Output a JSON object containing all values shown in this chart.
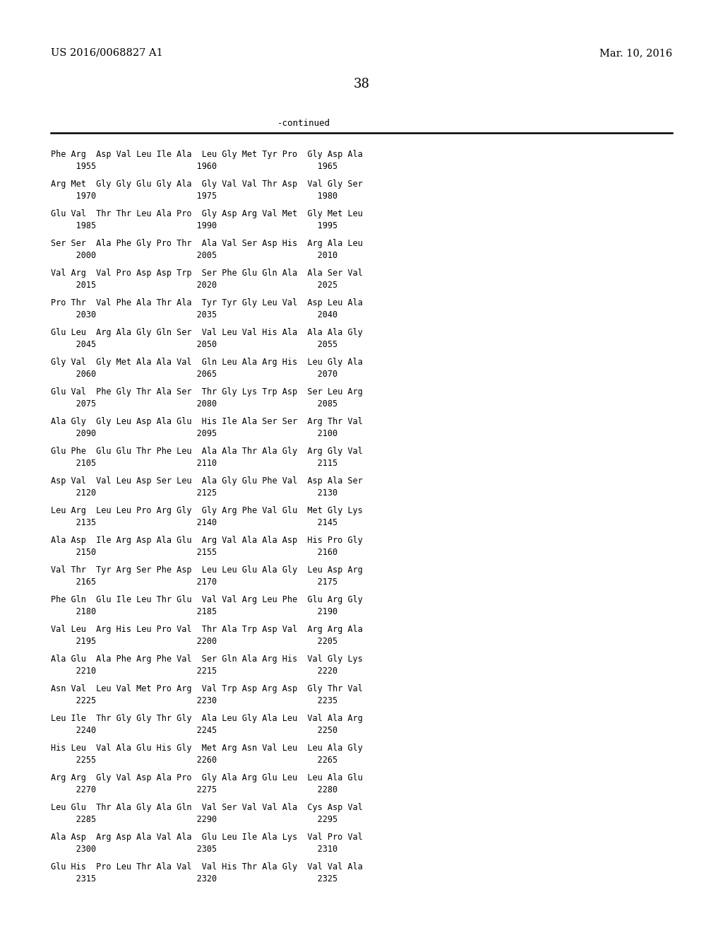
{
  "header_left": "US 2016/0068827 A1",
  "header_right": "Mar. 10, 2016",
  "page_number": "38",
  "continued_label": "-continued",
  "background_color": "#ffffff",
  "text_color": "#000000",
  "sequence_blocks": [
    {
      "seq": "Phe Arg  Asp Val Leu Ile Ala  Leu Gly Met Tyr Pro  Gly Asp Ala",
      "num": "     1955                    1960                    1965"
    },
    {
      "seq": "Arg Met  Gly Gly Glu Gly Ala  Gly Val Val Thr Asp  Val Gly Ser",
      "num": "     1970                    1975                    1980"
    },
    {
      "seq": "Glu Val  Thr Thr Leu Ala Pro  Gly Asp Arg Val Met  Gly Met Leu",
      "num": "     1985                    1990                    1995"
    },
    {
      "seq": "Ser Ser  Ala Phe Gly Pro Thr  Ala Val Ser Asp His  Arg Ala Leu",
      "num": "     2000                    2005                    2010"
    },
    {
      "seq": "Val Arg  Val Pro Asp Asp Trp  Ser Phe Glu Gln Ala  Ala Ser Val",
      "num": "     2015                    2020                    2025"
    },
    {
      "seq": "Pro Thr  Val Phe Ala Thr Ala  Tyr Tyr Gly Leu Val  Asp Leu Ala",
      "num": "     2030                    2035                    2040"
    },
    {
      "seq": "Glu Leu  Arg Ala Gly Gln Ser  Val Leu Val His Ala  Ala Ala Gly",
      "num": "     2045                    2050                    2055"
    },
    {
      "seq": "Gly Val  Gly Met Ala Ala Val  Gln Leu Ala Arg His  Leu Gly Ala",
      "num": "     2060                    2065                    2070"
    },
    {
      "seq": "Glu Val  Phe Gly Thr Ala Ser  Thr Gly Lys Trp Asp  Ser Leu Arg",
      "num": "     2075                    2080                    2085"
    },
    {
      "seq": "Ala Gly  Gly Leu Asp Ala Glu  His Ile Ala Ser Ser  Arg Thr Val",
      "num": "     2090                    2095                    2100"
    },
    {
      "seq": "Glu Phe  Glu Glu Thr Phe Leu  Ala Ala Thr Ala Gly  Arg Gly Val",
      "num": "     2105                    2110                    2115"
    },
    {
      "seq": "Asp Val  Val Leu Asp Ser Leu  Ala Gly Glu Phe Val  Asp Ala Ser",
      "num": "     2120                    2125                    2130"
    },
    {
      "seq": "Leu Arg  Leu Leu Pro Arg Gly  Gly Arg Phe Val Glu  Met Gly Lys",
      "num": "     2135                    2140                    2145"
    },
    {
      "seq": "Ala Asp  Ile Arg Asp Ala Glu  Arg Val Ala Ala Asp  His Pro Gly",
      "num": "     2150                    2155                    2160"
    },
    {
      "seq": "Val Thr  Tyr Arg Ser Phe Asp  Leu Leu Glu Ala Gly  Leu Asp Arg",
      "num": "     2165                    2170                    2175"
    },
    {
      "seq": "Phe Gln  Glu Ile Leu Thr Glu  Val Val Arg Leu Phe  Glu Arg Gly",
      "num": "     2180                    2185                    2190"
    },
    {
      "seq": "Val Leu  Arg His Leu Pro Val  Thr Ala Trp Asp Val  Arg Arg Ala",
      "num": "     2195                    2200                    2205"
    },
    {
      "seq": "Ala Glu  Ala Phe Arg Phe Val  Ser Gln Ala Arg His  Val Gly Lys",
      "num": "     2210                    2215                    2220"
    },
    {
      "seq": "Asn Val  Leu Val Met Pro Arg  Val Trp Asp Arg Asp  Gly Thr Val",
      "num": "     2225                    2230                    2235"
    },
    {
      "seq": "Leu Ile  Thr Gly Gly Thr Gly  Ala Leu Gly Ala Leu  Val Ala Arg",
      "num": "     2240                    2245                    2250"
    },
    {
      "seq": "His Leu  Val Ala Glu His Gly  Met Arg Asn Val Leu  Leu Ala Gly",
      "num": "     2255                    2260                    2265"
    },
    {
      "seq": "Arg Arg  Gly Val Asp Ala Pro  Gly Ala Arg Glu Leu  Leu Ala Glu",
      "num": "     2270                    2275                    2280"
    },
    {
      "seq": "Leu Glu  Thr Ala Gly Ala Gln  Val Ser Val Val Ala  Cys Asp Val",
      "num": "     2285                    2290                    2295"
    },
    {
      "seq": "Ala Asp  Arg Asp Ala Val Ala  Glu Leu Ile Ala Lys  Val Pro Val",
      "num": "     2300                    2305                    2310"
    },
    {
      "seq": "Glu His  Pro Leu Thr Ala Val  Val His Thr Ala Gly  Val Val Ala",
      "num": "     2315                    2320                    2325"
    }
  ]
}
